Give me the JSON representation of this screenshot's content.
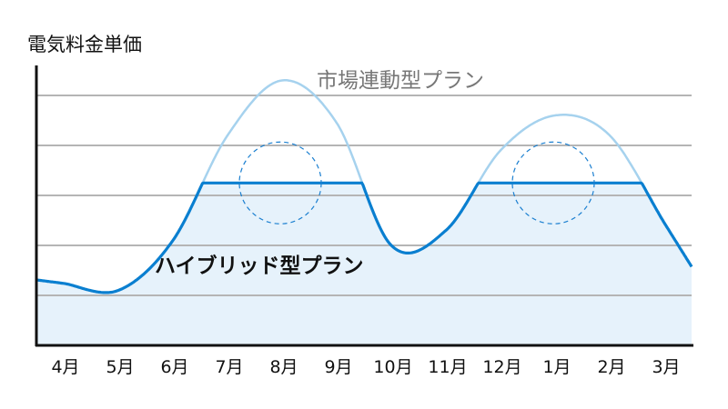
{
  "chart_data": {
    "type": "line",
    "ylabel": "電気料金単価",
    "xlabel": "",
    "categories": [
      "4月",
      "5月",
      "6月",
      "7月",
      "8月",
      "9月",
      "10月",
      "11月",
      "12月",
      "1月",
      "2月",
      "3月"
    ],
    "grid": true,
    "ylim": [
      0,
      5.5
    ],
    "series": [
      {
        "name": "市場連動型プラン",
        "values": [
          1.24,
          1.1,
          2.1,
          4.2,
          5.3,
          4.45,
          2.0,
          2.3,
          3.9,
          4.6,
          4.2,
          2.45
        ],
        "color": "#a6d2ee"
      },
      {
        "name": "ハイブリッド型プラン",
        "cap": 3.25,
        "color": "#0a7fd0",
        "fill": "#e6f2fb"
      }
    ],
    "highlights": [
      "8月",
      "1月"
    ]
  }
}
